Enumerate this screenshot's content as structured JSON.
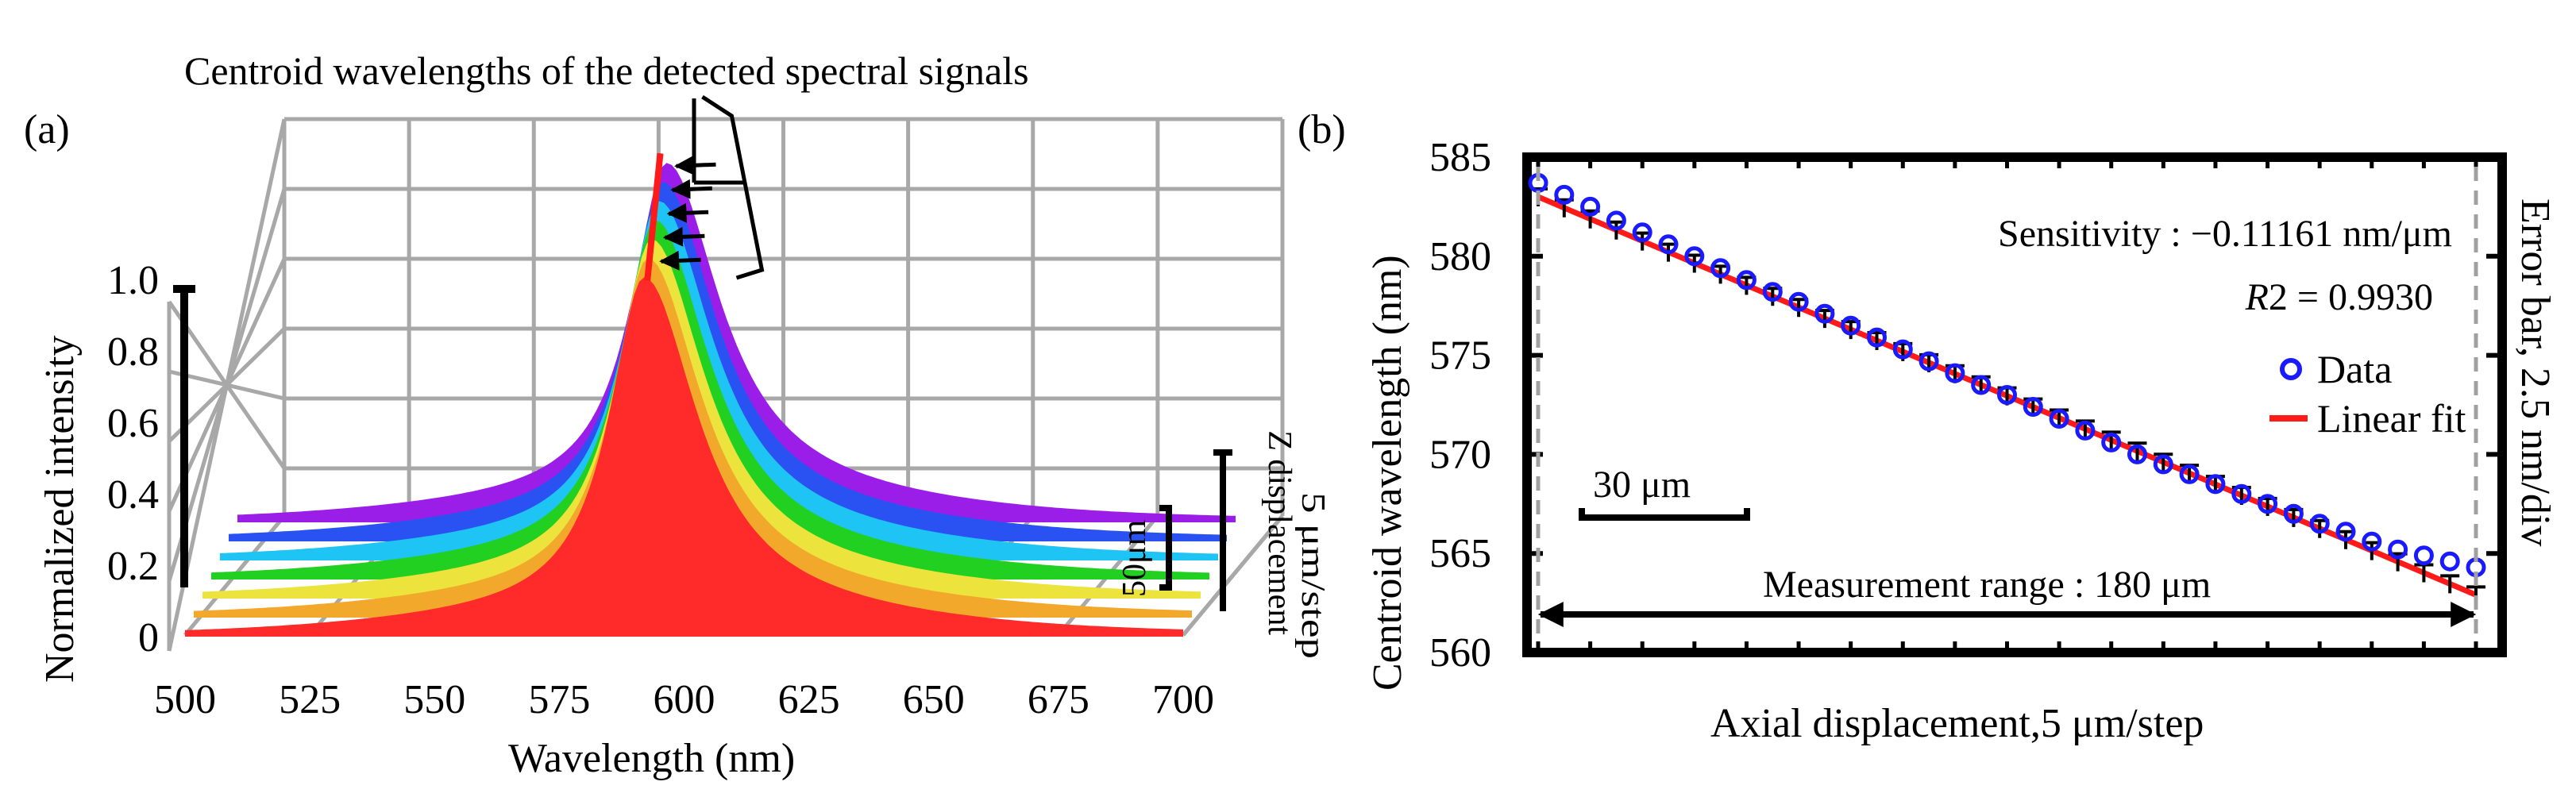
{
  "chart_data": [
    {
      "panel": "(a)",
      "type": "area",
      "title": "Centroid wavelengths of the detected spectral signals",
      "xlabel": "Wavelength (nm)",
      "ylabel": "Normalized intensity",
      "zlabel_1": "Z displacement",
      "zlabel_2": "5 μm/step",
      "scale_bar_label": "50μm",
      "xlim": [
        500,
        700
      ],
      "ylim": [
        0,
        1.0
      ],
      "x_ticks": [
        "500",
        "525",
        "550",
        "575",
        "600",
        "625",
        "650",
        "675",
        "700"
      ],
      "y_ticks": [
        "0",
        "0.2",
        "0.4",
        "0.6",
        "0.8",
        "1.0"
      ],
      "grid": true,
      "series": [
        {
          "name": "red",
          "color": "#ff2a2a",
          "center": 592,
          "peak": 0.98
        },
        {
          "name": "orange",
          "color": "#f2a82a",
          "center": 591,
          "peak": 0.98
        },
        {
          "name": "yellow",
          "color": "#ece43c",
          "center": 590,
          "peak": 0.98
        },
        {
          "name": "green",
          "color": "#22d022",
          "center": 589,
          "peak": 0.98
        },
        {
          "name": "cyan",
          "color": "#1ec4f4",
          "center": 588,
          "peak": 0.98
        },
        {
          "name": "blue",
          "color": "#2a52f2",
          "center": 587,
          "peak": 0.98
        },
        {
          "name": "purple",
          "color": "#9a1ee8",
          "center": 586,
          "peak": 0.98
        }
      ]
    },
    {
      "panel": "(b)",
      "type": "scatter",
      "xlabel": "Axial displacement,5 μm/step",
      "ylabel": "Centroid wavelength (nm)",
      "ylabel_right": "Error bar, 2.5 nm/div",
      "ylim": [
        560,
        585
      ],
      "x_range_um": [
        0,
        180
      ],
      "y_ticks": [
        "560",
        "565",
        "570",
        "575",
        "580",
        "585"
      ],
      "annotation_sensitivity": "Sensitivity : −0.11161 nm/μm",
      "annotation_r2_symbol": "R",
      "annotation_r2_value": "2 = 0.9930",
      "legend": {
        "data": "Data",
        "fit": "Linear fit",
        "position": "top-right"
      },
      "scale_bar_label": "30 μm",
      "range_label": "Measurement range : 180 μm",
      "fit": {
        "slope_nm_per_um": -0.11161,
        "intercept_nm": 583.0,
        "r2": 0.993
      },
      "step_um": 5,
      "data_x_um": [
        0,
        5,
        10,
        15,
        20,
        25,
        30,
        35,
        40,
        45,
        50,
        55,
        60,
        65,
        70,
        75,
        80,
        85,
        90,
        95,
        100,
        105,
        110,
        115,
        120,
        125,
        130,
        135,
        140,
        145,
        150,
        155,
        160,
        165,
        170,
        175,
        180
      ],
      "data_y_nm": [
        583.7,
        583.1,
        582.5,
        581.8,
        581.2,
        580.6,
        580.0,
        579.4,
        578.8,
        578.2,
        577.7,
        577.1,
        576.5,
        575.9,
        575.3,
        574.7,
        574.1,
        573.5,
        573.0,
        572.4,
        571.8,
        571.2,
        570.6,
        570.0,
        569.5,
        569.0,
        568.5,
        568.0,
        567.5,
        567.0,
        566.5,
        566.1,
        565.6,
        565.2,
        564.9,
        564.6,
        564.3
      ]
    }
  ]
}
